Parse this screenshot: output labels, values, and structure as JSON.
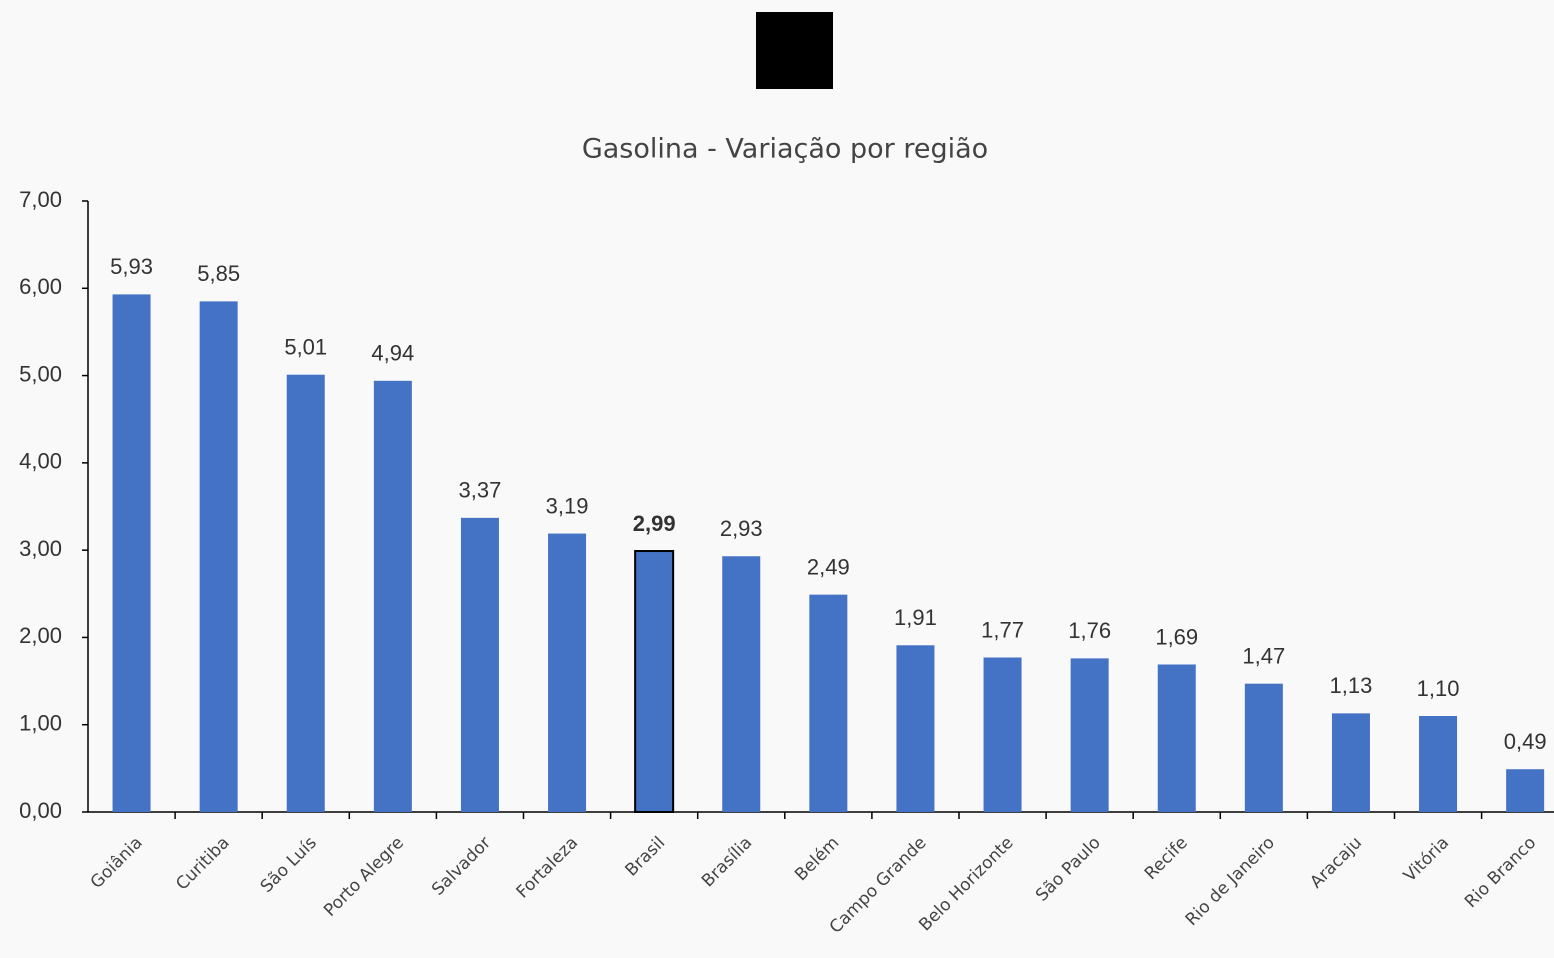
{
  "chart_data": {
    "type": "bar",
    "title": "Gasolina - Variação por região",
    "categories": [
      "Goiânia",
      "Curitiba",
      "São Luís",
      "Porto Alegre",
      "Salvador",
      "Fortaleza",
      "Brasil",
      "Brasília",
      "Belém",
      "Campo Grande",
      "Belo Horizonte",
      "São Paulo",
      "Recife",
      "Rio de Janeiro",
      "Aracaju",
      "Vitória",
      "Rio Branco"
    ],
    "values": [
      5.93,
      5.85,
      5.01,
      4.94,
      3.37,
      3.19,
      2.99,
      2.93,
      2.49,
      1.91,
      1.77,
      1.76,
      1.69,
      1.47,
      1.13,
      1.1,
      0.49
    ],
    "value_labels": [
      "5,93",
      "5,85",
      "5,01",
      "4,94",
      "3,37",
      "3,19",
      "2,99",
      "2,93",
      "2,49",
      "1,91",
      "1,77",
      "1,76",
      "1,69",
      "1,47",
      "1,13",
      "1,10",
      "0,49"
    ],
    "color": "#4472c4",
    "highlight_category": "Brasil",
    "ylim": [
      0,
      7
    ],
    "yticks": [
      {
        "value": 0,
        "label": "0,00"
      },
      {
        "value": 1,
        "label": "1,00"
      },
      {
        "value": 2,
        "label": "2,00"
      },
      {
        "value": 3,
        "label": "3,00"
      },
      {
        "value": 4,
        "label": "4,00"
      },
      {
        "value": 5,
        "label": "5,00"
      },
      {
        "value": 6,
        "label": "6,00"
      },
      {
        "value": 7,
        "label": "7,00"
      }
    ],
    "grid": false
  }
}
